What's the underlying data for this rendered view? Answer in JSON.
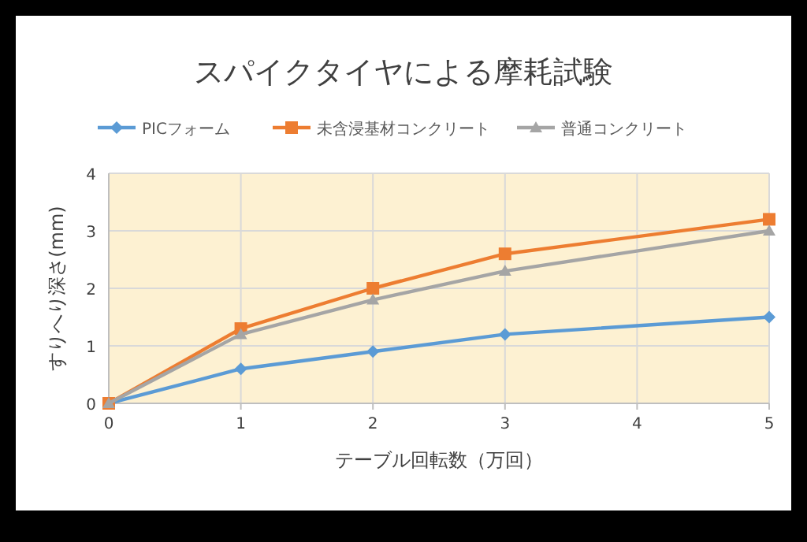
{
  "chart_data": {
    "type": "line",
    "title": "スパイクタイヤによる摩耗試験",
    "xlabel": "テーブル回転数（万回）",
    "ylabel": "すりへり深さ(mm)",
    "x": [
      0,
      1,
      2,
      3,
      5
    ],
    "xlim": [
      0,
      5
    ],
    "xticks": [
      0,
      1,
      2,
      3,
      4,
      5
    ],
    "ylim": [
      0,
      4
    ],
    "yticks": [
      0,
      1,
      2,
      3,
      4
    ],
    "grid": true,
    "legend": "top",
    "series": [
      {
        "name": "PICフォーム",
        "color": "#5b9bd5",
        "marker": "diamond",
        "values": [
          0,
          0.6,
          0.9,
          1.2,
          1.5
        ]
      },
      {
        "name": "未含浸基材コンクリート",
        "color": "#ed7d31",
        "marker": "square",
        "values": [
          0,
          1.3,
          2.0,
          2.6,
          3.2
        ]
      },
      {
        "name": "普通コンクリート",
        "color": "#a5a5a5",
        "marker": "triangle",
        "values": [
          0,
          1.2,
          1.8,
          2.3,
          3.0
        ]
      }
    ]
  }
}
